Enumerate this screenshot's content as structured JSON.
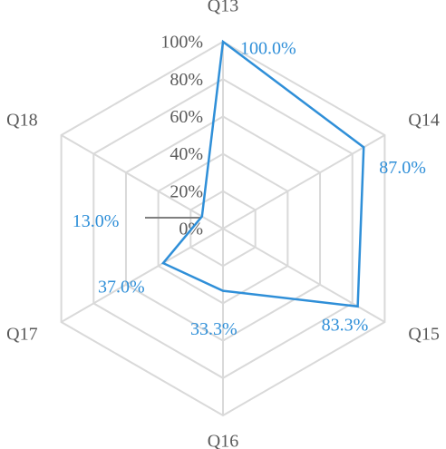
{
  "chart_data": {
    "type": "radar",
    "categories": [
      "Q13",
      "Q14",
      "Q15",
      "Q16",
      "Q17",
      "Q18"
    ],
    "series": [
      {
        "color": "#2f8fd8",
        "values": [
          100,
          87,
          83.3,
          33.3,
          37,
          13
        ],
        "value_labels": [
          "100.0%",
          "87.0%",
          "83.3%",
          "33.3%",
          "37.0%",
          "13.0%"
        ]
      }
    ],
    "ylim": [
      0,
      100
    ],
    "yticks": [
      {
        "value": 0,
        "label": "0%"
      },
      {
        "value": 20,
        "label": "20%"
      },
      {
        "value": 40,
        "label": "40%"
      },
      {
        "value": 60,
        "label": "60%"
      },
      {
        "value": 80,
        "label": "80%"
      },
      {
        "value": 100,
        "label": "100%"
      }
    ],
    "grid": true
  }
}
